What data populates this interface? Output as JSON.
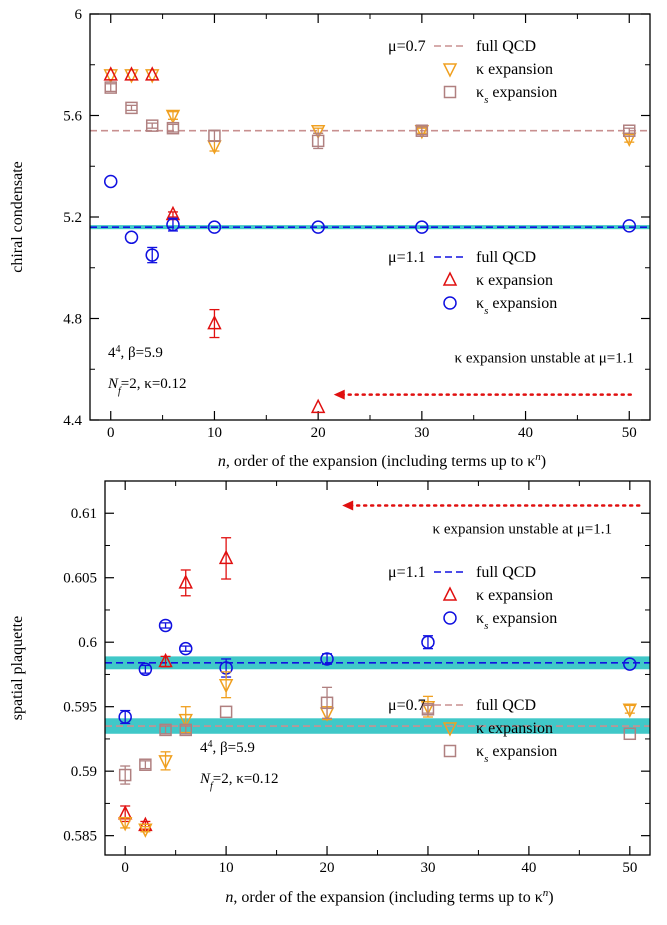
{
  "chart_data": [
    {
      "type": "scatter",
      "ylabel": "chiral condensate",
      "xlabel_main": "n, order of the expansion (including terms up to κ",
      "xlabel_sup": "n",
      "xlabel_close": ")",
      "xlim": [
        -2,
        52
      ],
      "ylim": [
        4.4,
        6.0
      ],
      "xticks": [
        0,
        10,
        20,
        30,
        40,
        50
      ],
      "yticks": [
        4.4,
        4.8,
        5.2,
        5.6,
        6.0
      ],
      "ytick_labels": [
        "4.4",
        "4.8",
        "5.2",
        "5.6",
        "6"
      ],
      "reference_lines": [
        {
          "label": "μ=0.7",
          "name": "full QCD",
          "value": 5.54,
          "style": "dashed",
          "color": "#c89090",
          "band": null
        },
        {
          "label": "μ=1.1",
          "name": "full QCD",
          "value": 5.16,
          "style": "dashed",
          "color": "#1010e0",
          "band": [
            5.152,
            5.168
          ],
          "band_color": "#40c8c8"
        }
      ],
      "series": [
        {
          "name": "κ expansion",
          "group": "μ=0.7",
          "marker": "triangle-down",
          "color": "#f0a020",
          "points": [
            [
              0,
              5.76,
              0
            ],
            [
              2,
              5.76,
              0
            ],
            [
              4,
              5.76,
              0
            ],
            [
              6,
              5.6,
              0.015
            ],
            [
              10,
              5.48,
              0.02
            ],
            [
              20,
              5.54,
              0.01
            ],
            [
              30,
              5.54,
              0.01
            ],
            [
              50,
              5.51,
              0.015
            ]
          ]
        },
        {
          "name": "κs expansion",
          "group": "μ=0.7",
          "marker": "square",
          "color": "#b08080",
          "points": [
            [
              0,
              5.71,
              0.015
            ],
            [
              2,
              5.63,
              0.01
            ],
            [
              4,
              5.56,
              0.01
            ],
            [
              6,
              5.55,
              0.015
            ],
            [
              10,
              5.52,
              0.02
            ],
            [
              20,
              5.5,
              0.03
            ],
            [
              30,
              5.54,
              0.015
            ],
            [
              50,
              5.54,
              0.01
            ]
          ]
        },
        {
          "name": "κ expansion",
          "group": "μ=1.1",
          "marker": "triangle-up",
          "color": "#e01010",
          "points": [
            [
              0,
              5.76,
              0
            ],
            [
              2,
              5.76,
              0
            ],
            [
              4,
              5.76,
              0
            ],
            [
              6,
              5.21,
              0.01
            ],
            [
              10,
              4.78,
              0.055
            ],
            [
              20,
              4.45,
              0
            ]
          ]
        },
        {
          "name": "κs expansion",
          "group": "μ=1.1",
          "marker": "circle",
          "color": "#1010e0",
          "points": [
            [
              0,
              5.34,
              0
            ],
            [
              2,
              5.12,
              0
            ],
            [
              4,
              5.05,
              0.03
            ],
            [
              6,
              5.17,
              0.025
            ],
            [
              10,
              5.16,
              0
            ],
            [
              20,
              5.16,
              0
            ],
            [
              30,
              5.16,
              0
            ],
            [
              50,
              5.165,
              0
            ]
          ]
        }
      ],
      "legend": [
        {
          "label": "μ=0.7",
          "entries": [
            "full QCD",
            "κ expansion",
            "κs expansion"
          ]
        },
        {
          "label": "μ=1.1",
          "entries": [
            "full QCD",
            "κ expansion",
            "κs expansion"
          ]
        }
      ],
      "params_line1": "4",
      "params_line1_sup": "4",
      "params_line1_rest": ", β=5.9",
      "params_line2_n": "N",
      "params_line2_sub": "f",
      "params_line2_rest": "=2, κ=0.12",
      "annotation": "κ expansion unstable at μ=1.1",
      "annotation_arrow_to_x": 21.5,
      "annotation_arrow_from_x": 50.5,
      "annotation_arrow_y": 4.5
    },
    {
      "type": "scatter",
      "ylabel": "spatial plaquette",
      "xlabel_main": "n, order of the expansion (including terms up to κ",
      "xlabel_sup": "n",
      "xlabel_close": ")",
      "xlim": [
        -2,
        52
      ],
      "ylim": [
        0.5835,
        0.6125
      ],
      "xticks": [
        0,
        10,
        20,
        30,
        40,
        50
      ],
      "yticks": [
        0.585,
        0.59,
        0.595,
        0.6,
        0.605,
        0.61
      ],
      "ytick_labels": [
        "0.585",
        "0.59",
        "0.595",
        "0.6",
        "0.605",
        "0.61"
      ],
      "reference_lines": [
        {
          "label": "μ=1.1",
          "name": "full QCD",
          "value": 0.5984,
          "style": "dashed",
          "color": "#1010e0",
          "band": [
            0.5979,
            0.5989
          ],
          "band_color": "#40c8c8"
        },
        {
          "label": "μ=0.7",
          "name": "full QCD",
          "value": 0.5935,
          "style": "dashed",
          "color": "#c89090",
          "band": [
            0.5929,
            0.5941
          ],
          "band_color": "#40c8c8"
        }
      ],
      "series": [
        {
          "name": "κ expansion",
          "group": "μ=1.1",
          "marker": "triangle-up",
          "color": "#e01010",
          "points": [
            [
              0,
              0.5867,
              0.0006
            ],
            [
              2,
              0.5858,
              0.0003
            ],
            [
              4,
              0.5985,
              0.0004
            ],
            [
              6,
              0.6046,
              0.001
            ],
            [
              10,
              0.6065,
              0.0016
            ]
          ]
        },
        {
          "name": "κs expansion",
          "group": "μ=1.1",
          "marker": "circle",
          "color": "#1010e0",
          "points": [
            [
              0,
              0.5942,
              0.0005
            ],
            [
              2,
              0.5979,
              0.0003
            ],
            [
              4,
              0.6013,
              0.0002
            ],
            [
              6,
              0.5995,
              0.0002
            ],
            [
              10,
              0.598,
              0.0007
            ],
            [
              20,
              0.5987,
              0.0004
            ],
            [
              30,
              0.6,
              0.0005
            ],
            [
              50,
              0.5983,
              0
            ]
          ]
        },
        {
          "name": "κ expansion",
          "group": "μ=0.7",
          "marker": "triangle-down",
          "color": "#f0a020",
          "points": [
            [
              0,
              0.586,
              0.0004
            ],
            [
              2,
              0.5855,
              0.0002
            ],
            [
              4,
              0.5908,
              0.0007
            ],
            [
              6,
              0.594,
              0.001
            ],
            [
              10,
              0.5967,
              0.001
            ],
            [
              20,
              0.5945,
              0.0005
            ],
            [
              30,
              0.595,
              0.0008
            ],
            [
              50,
              0.5948,
              0.0003
            ]
          ]
        },
        {
          "name": "κs expansion",
          "group": "μ=0.7",
          "marker": "square",
          "color": "#b08080",
          "points": [
            [
              0,
              0.5897,
              0.0007
            ],
            [
              2,
              0.5905,
              0.0003
            ],
            [
              4,
              0.5932,
              0.0003
            ],
            [
              6,
              0.5932,
              0.0003
            ],
            [
              10,
              0.5946,
              0
            ],
            [
              20,
              0.5953,
              0.0012
            ],
            [
              30,
              0.5948,
              0.0003
            ],
            [
              50,
              0.5929,
              0
            ]
          ]
        }
      ],
      "legend": [
        {
          "label": "μ=1.1",
          "entries": [
            "full QCD",
            "κ expansion",
            "κs expansion"
          ]
        },
        {
          "label": "μ=0.7",
          "entries": [
            "full QCD",
            "κ expansion",
            "κs expansion"
          ]
        }
      ],
      "params_line1": "4",
      "params_line1_sup": "4",
      "params_line1_rest": ", β=5.9",
      "params_line2_n": "N",
      "params_line2_sub": "f",
      "params_line2_rest": "=2, κ=0.12",
      "annotation": "κ expansion unstable at μ=1.1",
      "annotation_arrow_to_x": 21.5,
      "annotation_arrow_from_x": 51,
      "annotation_arrow_y": 0.6106
    }
  ]
}
